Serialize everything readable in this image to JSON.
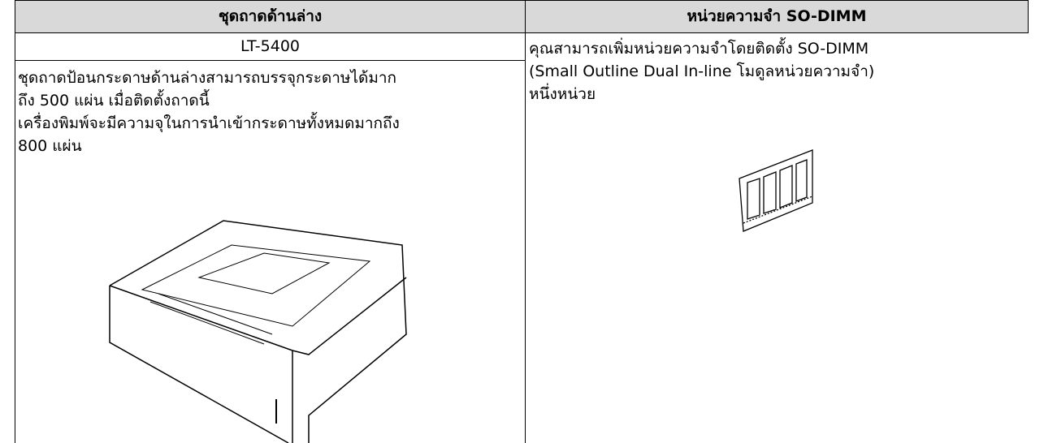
{
  "header": {
    "left": "ชุดถาดด้านล่าง",
    "right": "หน่วยความจำ SO-DIMM"
  },
  "left": {
    "model": "LT-5400",
    "description": [
      "ชุดถาดป้อนกระดาษด้านล่างสามารถบรรจุกระดาษได้มาก",
      "ถึง 500 แผ่น เมื่อติดตั้งถาดนี้",
      "เครื่องพิมพ์จะมีความจุในการนำเข้ากระดาษทั้งหมดมากถึง",
      "800 แผ่น"
    ]
  },
  "right": {
    "description": [
      "คุณสามารถเพิ่มหน่วยความจำโดยติดตั้ง SO-DIMM",
      "(Small Outline Dual In-line โมดูลหน่วยความจำ)",
      "หนึ่งหน่วย"
    ]
  }
}
